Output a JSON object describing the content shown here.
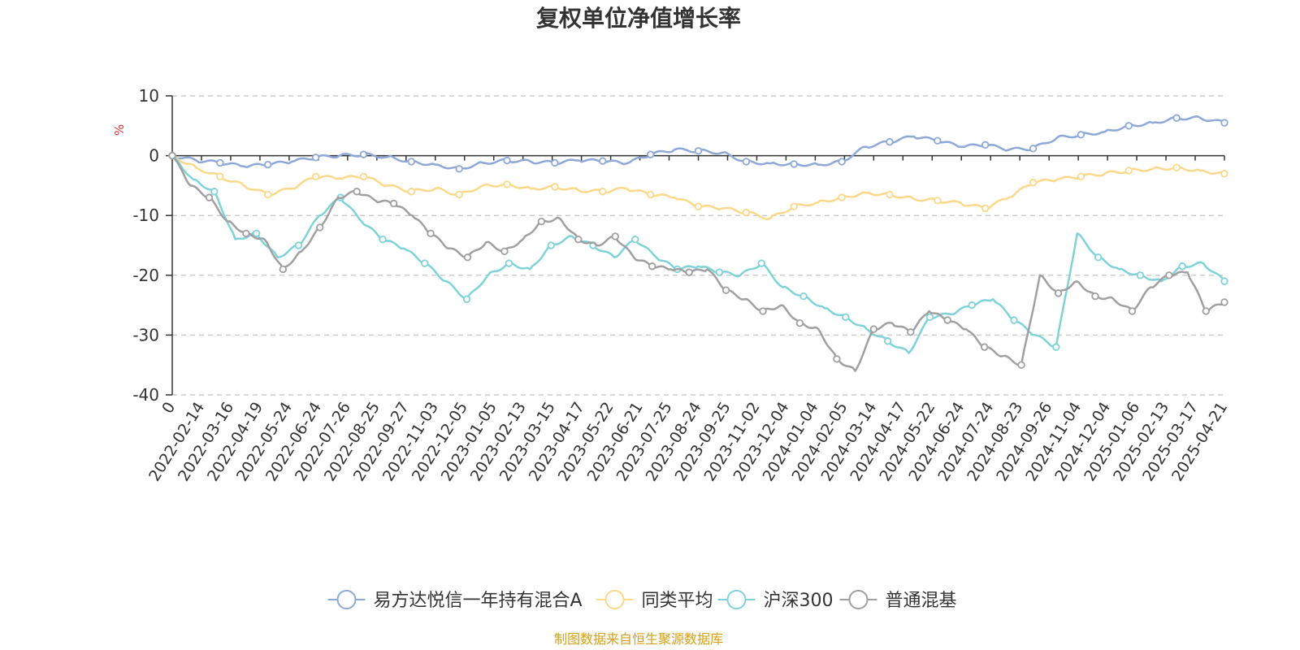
{
  "chart_data": {
    "type": "line",
    "title": "复权单位净值增长率",
    "ylabel": "%",
    "ylim": [
      -40,
      10
    ],
    "yticks": [
      10,
      0,
      -10,
      -20,
      -30,
      -40
    ],
    "grid": true,
    "legend_position": "bottom",
    "x_tick_labels": [
      "0",
      "2022-02-14",
      "2022-03-16",
      "2022-04-19",
      "2022-05-24",
      "2022-06-24",
      "2022-07-26",
      "2022-08-25",
      "2022-09-27",
      "2022-11-03",
      "2022-12-05",
      "2023-01-05",
      "2023-02-13",
      "2023-03-15",
      "2023-04-17",
      "2023-05-22",
      "2023-06-21",
      "2023-07-25",
      "2023-08-24",
      "2023-09-25",
      "2023-11-02",
      "2023-12-04",
      "2024-01-04",
      "2024-02-05",
      "2024-03-14",
      "2024-04-17",
      "2024-05-22",
      "2024-06-24",
      "2024-07-24",
      "2024-08-23",
      "2024-09-26",
      "2024-11-04",
      "2024-12-04",
      "2025-01-06",
      "2025-02-13",
      "2025-03-17",
      "2025-04-21"
    ],
    "series": [
      {
        "name": "易方达悦信一年持有混合A",
        "color": "#8ea8d8",
        "values": [
          0,
          -0.8,
          -1.2,
          -1.8,
          -1.5,
          -1.0,
          -0.3,
          0,
          0.2,
          -0.2,
          -1.0,
          -1.5,
          -2.2,
          -1.2,
          -0.8,
          -1.0,
          -1.2,
          -0.8,
          -0.9,
          -1.3,
          0.2,
          1.0,
          0.8,
          0.5,
          -1.0,
          -1.3,
          -1.4,
          -1.5,
          -1.0,
          1.5,
          2.3,
          3.2,
          2.5,
          1.5,
          1.8,
          1.0,
          1.2,
          3.0,
          3.5,
          4.0,
          5.0,
          5.5,
          6.3,
          6.3,
          5.5
        ]
      },
      {
        "name": "同类平均",
        "color": "#fcd88a",
        "values": [
          0,
          -2.0,
          -3.5,
          -5.0,
          -6.5,
          -5.5,
          -3.5,
          -3.8,
          -3.5,
          -5.0,
          -6.0,
          -5.5,
          -6.5,
          -5.0,
          -4.8,
          -5.5,
          -5.2,
          -5.8,
          -6.0,
          -5.5,
          -6.5,
          -7.0,
          -8.5,
          -8.8,
          -9.5,
          -10.5,
          -8.5,
          -7.8,
          -7.0,
          -6.2,
          -6.5,
          -7.2,
          -7.5,
          -8.0,
          -8.8,
          -7.0,
          -4.5,
          -4.0,
          -3.5,
          -3.0,
          -2.5,
          -2.2,
          -2.0,
          -2.5,
          -3.0
        ]
      },
      {
        "name": "沪深300",
        "color": "#7fd3d8",
        "values": [
          0,
          -4.0,
          -6.0,
          -14.0,
          -13.0,
          -17.0,
          -15.0,
          -10.0,
          -7.0,
          -11.0,
          -14.0,
          -15.5,
          -18.0,
          -21.0,
          -24.0,
          -20.0,
          -18.0,
          -19.0,
          -15.0,
          -13.5,
          -15.0,
          -17.0,
          -14.0,
          -17.0,
          -19.0,
          -18.5,
          -19.5,
          -20.0,
          -18.0,
          -22.0,
          -23.5,
          -25.5,
          -27.0,
          -29.0,
          -31.0,
          -33.0,
          -27.0,
          -26.5,
          -25.0,
          -24.0,
          -27.5,
          -30.0,
          -32.0,
          -13.0,
          -17.0,
          -19.0,
          -20.0,
          -21.0,
          -18.5,
          -18.0,
          -21.0
        ]
      },
      {
        "name": "普通混基",
        "color": "#a0a0a0",
        "values": [
          0,
          -5.0,
          -7.0,
          -11.0,
          -13.0,
          -14.0,
          -19.0,
          -16.0,
          -12.0,
          -7.0,
          -6.0,
          -7.5,
          -8.0,
          -10.0,
          -13.0,
          -15.5,
          -17.0,
          -14.5,
          -16.0,
          -14.0,
          -11.0,
          -10.5,
          -14.0,
          -15.0,
          -13.5,
          -17.0,
          -18.5,
          -19.0,
          -19.5,
          -19.0,
          -22.5,
          -24.0,
          -26.0,
          -25.0,
          -28.0,
          -29.0,
          -34.0,
          -36.0,
          -29.0,
          -28.0,
          -29.5,
          -26.0,
          -27.5,
          -29.0,
          -32.0,
          -33.5,
          -35.0,
          -20.0,
          -23.0,
          -21.0,
          -23.5,
          -24.0,
          -26.0,
          -22.0,
          -20.0,
          -19.5,
          -26.0,
          -24.5
        ]
      }
    ]
  },
  "legend": [
    {
      "label": "易方达悦信一年持有混合A",
      "color": "#8ea8d8"
    },
    {
      "label": "同类平均",
      "color": "#fcd88a"
    },
    {
      "label": "沪深300",
      "color": "#7fd3d8"
    },
    {
      "label": "普通混基",
      "color": "#a0a0a0"
    }
  ],
  "source_note": "制图数据来自恒生聚源数据库"
}
